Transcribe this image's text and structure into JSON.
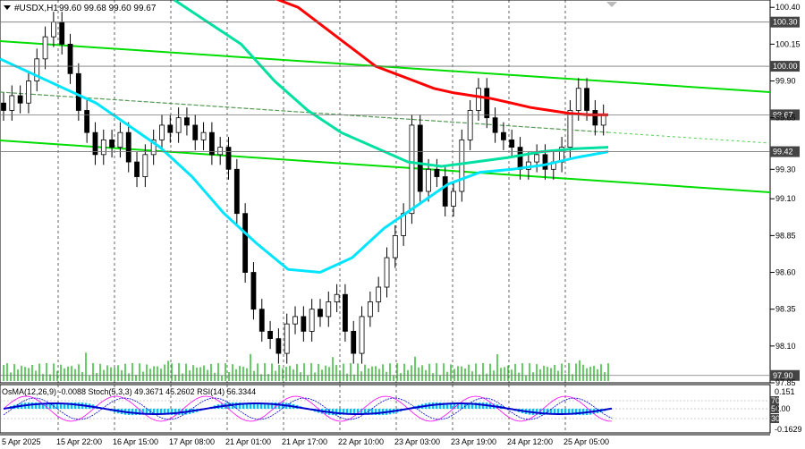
{
  "chart_data": {
    "type": "candlestick",
    "symbol_title": "#USDX,H1",
    "ohlc_header": "99.60 99.68 99.60 99.67",
    "price_ticks": [
      "100.40",
      "100.15",
      "99.90",
      "99.65",
      "99.30",
      "99.10",
      "98.85",
      "98.60",
      "98.35",
      "98.10",
      "97.85"
    ],
    "price_range": [
      97.85,
      100.45
    ],
    "highlighted_levels": [
      {
        "label": "100.30",
        "value": 100.3
      },
      {
        "label": "100.00",
        "value": 100.0
      },
      {
        "label": "99.67",
        "value": 99.67
      },
      {
        "label": "99.42",
        "value": 99.42
      },
      {
        "label": "97.90",
        "value": 97.9
      }
    ],
    "time_labels": [
      "5 Apr 2025",
      "15 Apr 22:00",
      "16 Apr 15:00",
      "17 Apr 08:00",
      "21 Apr 01:00",
      "21 Apr 17:00",
      "22 Apr 10:00",
      "23 Apr 03:00",
      "23 Apr 19:00",
      "24 Apr 12:00",
      "25 Apr 05:00"
    ],
    "closes": [
      99.7,
      99.8,
      99.75,
      99.9,
      100.05,
      100.2,
      100.3,
      100.15,
      99.95,
      99.7,
      99.55,
      99.4,
      99.5,
      99.45,
      99.55,
      99.35,
      99.25,
      99.4,
      99.5,
      99.6,
      99.55,
      99.65,
      99.6,
      99.5,
      99.55,
      99.4,
      99.45,
      99.3,
      99.0,
      98.6,
      98.35,
      98.2,
      98.15,
      98.05,
      98.25,
      98.3,
      98.2,
      98.35,
      98.3,
      98.4,
      98.45,
      98.2,
      98.05,
      98.3,
      98.4,
      98.5,
      98.7,
      98.85,
      99.0,
      99.6,
      99.15,
      99.3,
      99.25,
      99.05,
      99.15,
      99.5,
      99.7,
      99.85,
      99.65,
      99.55,
      99.5,
      99.45,
      99.3,
      99.35,
      99.4,
      99.3,
      99.35,
      99.45,
      99.7,
      99.85,
      99.7,
      99.6,
      99.67
    ],
    "ma_red": [
      100.5,
      100.45,
      100.4,
      100.3,
      100.2,
      100.1,
      100.0,
      99.95,
      99.9,
      99.85,
      99.82,
      99.8,
      99.78,
      99.75,
      99.72,
      99.7,
      99.68,
      99.67,
      99.67
    ],
    "ma_green": [
      100.45,
      100.3,
      100.15,
      99.9,
      99.7,
      99.55,
      99.45,
      99.35,
      99.32,
      99.35,
      99.38,
      99.42,
      99.44,
      99.45
    ],
    "ma_cyan": [
      100.05,
      99.95,
      99.85,
      99.75,
      99.6,
      99.45,
      99.25,
      99.0,
      98.8,
      98.62,
      98.6,
      98.7,
      98.9,
      99.05,
      99.2,
      99.28,
      99.3,
      99.33,
      99.38,
      99.42
    ],
    "indicator_text": "OsMA(12,26,9) -0.0088  Stoch(5,3,3) 49.3671 45.2602  RSI(14) 56.3344",
    "indicator_ticks": [
      "0.151",
      "0.00",
      "-0.1629"
    ],
    "indicator_levels": [
      "70",
      "50",
      "30"
    ]
  },
  "colors": {
    "candle": "#000000",
    "ma_red": "#ff0000",
    "ma_green": "#00e0a0",
    "ma_cyan": "#00e5ff",
    "channel": "#00dd00",
    "volume": "#33bb33",
    "osma": "#00bfff",
    "stoch_main": "#ff00ff",
    "stoch_signal": "#0000cc",
    "rsi": "#0000cc"
  }
}
